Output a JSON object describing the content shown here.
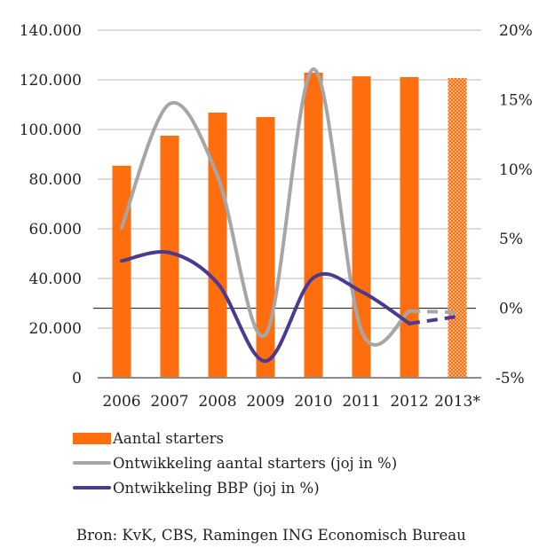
{
  "chart_data": {
    "type": "bar",
    "title": "",
    "categories": [
      "2006",
      "2007",
      "2008",
      "2009",
      "2010",
      "2011",
      "2012",
      "2013*"
    ],
    "series": [
      {
        "name": "Aantal starters",
        "type": "bar",
        "axis": "left",
        "color": "#FF6E0E",
        "values": [
          85400,
          97500,
          106800,
          105000,
          122900,
          121400,
          121100,
          120700
        ],
        "forecast_from_index": 7
      },
      {
        "name": "Ontwikkeling aantal starters (joj in %)",
        "type": "line",
        "axis": "right",
        "color": "#A6A6A6",
        "values": [
          5.8,
          14.7,
          9.5,
          -1.9,
          17.2,
          -1.6,
          -0.2,
          -0.3
        ],
        "forecast_from_index": 6
      },
      {
        "name": "Ontwikkeling BBP (joj in %)",
        "type": "line",
        "axis": "right",
        "color": "#4B3A8E",
        "values": [
          3.4,
          4.0,
          1.8,
          -3.8,
          2.2,
          1.2,
          -1.1,
          -0.6
        ],
        "forecast_from_index": 6
      }
    ],
    "y_left": {
      "ticks": [
        "0",
        "20.000",
        "40.000",
        "60.000",
        "80.000",
        "100.000",
        "120.000",
        "140.000"
      ],
      "range": [
        0,
        140000
      ],
      "step": 20000
    },
    "y_right": {
      "ticks": [
        "-5%",
        "0%",
        "5%",
        "10%",
        "15%",
        "20%"
      ],
      "range": [
        -5,
        20
      ],
      "step": 5
    },
    "grid": true,
    "legend_position": "bottom-left"
  },
  "legend": {
    "items": [
      {
        "label": "Aantal starters"
      },
      {
        "label": "Ontwikkeling aantal starters (joj in %)"
      },
      {
        "label": "Ontwikkeling BBP (joj in %)"
      }
    ]
  },
  "source": "Bron: KvK, CBS, Ramingen ING Economisch Bureau"
}
